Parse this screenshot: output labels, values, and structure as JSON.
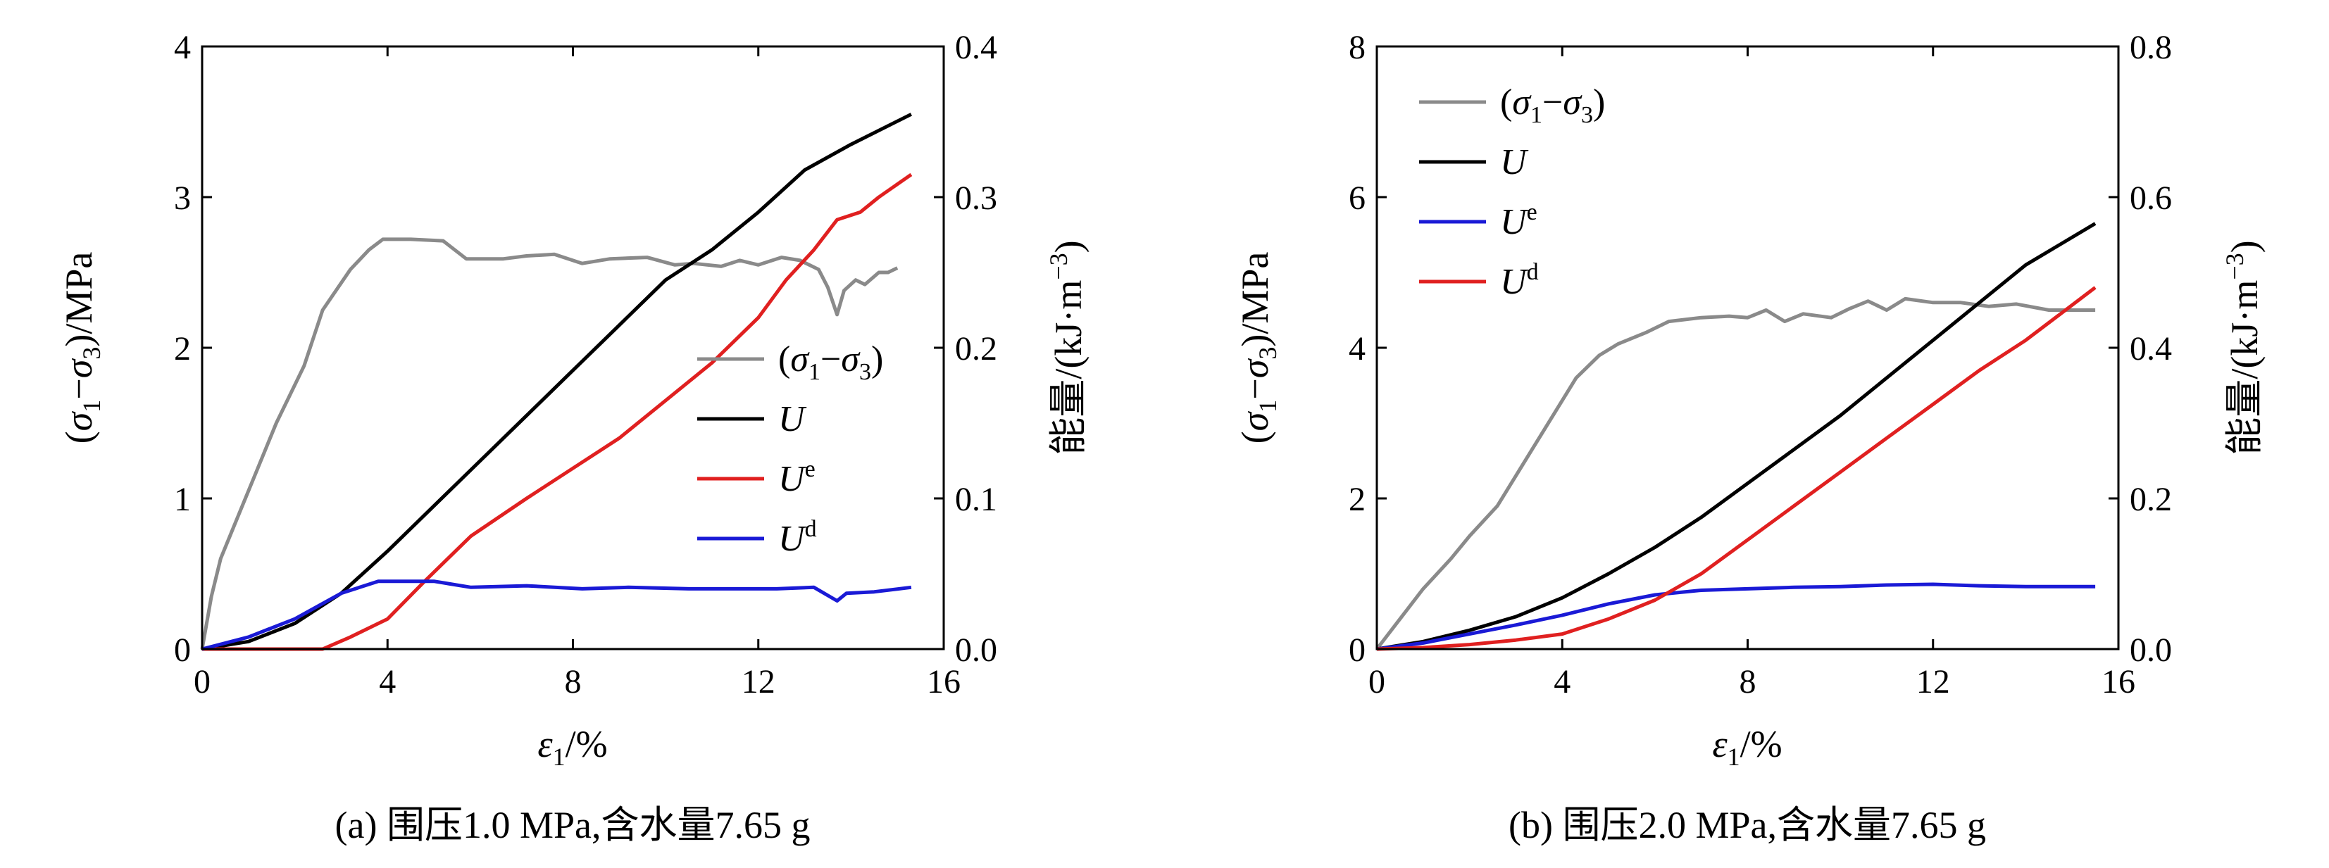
{
  "chart_data": [
    {
      "type": "line",
      "caption": "(a) 围压1.0 MPa,含水量7.65 g",
      "xlabel": {
        "main": "ε",
        "sub": "1",
        "tail": "/%"
      },
      "ylabel_left": {
        "p1": "(σ",
        "s1": "1",
        "p2": "−σ",
        "s2": "3",
        "p3": ")/MPa"
      },
      "ylabel_right": {
        "main": "能量/(kJ·m",
        "sup": "−3",
        "tail": ")"
      },
      "xlim": [
        0,
        16
      ],
      "ylim_left": [
        0,
        4
      ],
      "ylim_right": [
        0,
        0.4
      ],
      "xticks": [
        "0",
        "4",
        "8",
        "12",
        "16"
      ],
      "yticks_left": [
        "0",
        "1",
        "2",
        "3",
        "4"
      ],
      "yticks_right": [
        "0.0",
        "0.1",
        "0.2",
        "0.3",
        "0.4"
      ],
      "legend_position": "center-right",
      "series": [
        {
          "name": "(σ1−σ3)",
          "legend": {
            "p1": "(σ",
            "s1": "1",
            "p2": "−σ",
            "s2": "3",
            "p3": ")"
          },
          "axis": "left",
          "color": "#8a8a8a",
          "points": [
            [
              0,
              0
            ],
            [
              0.2,
              0.35
            ],
            [
              0.4,
              0.6
            ],
            [
              0.8,
              0.9
            ],
            [
              1.2,
              1.2
            ],
            [
              1.6,
              1.5
            ],
            [
              2.2,
              1.88
            ],
            [
              2.6,
              2.25
            ],
            [
              3.2,
              2.52
            ],
            [
              3.6,
              2.65
            ],
            [
              3.9,
              2.72
            ],
            [
              4.5,
              2.72
            ],
            [
              5.2,
              2.71
            ],
            [
              5.7,
              2.59
            ],
            [
              6.5,
              2.59
            ],
            [
              7.0,
              2.61
            ],
            [
              7.6,
              2.62
            ],
            [
              8.2,
              2.56
            ],
            [
              8.8,
              2.59
            ],
            [
              9.6,
              2.6
            ],
            [
              10.2,
              2.55
            ],
            [
              10.6,
              2.56
            ],
            [
              11.2,
              2.54
            ],
            [
              11.6,
              2.58
            ],
            [
              12.0,
              2.55
            ],
            [
              12.5,
              2.6
            ],
            [
              12.9,
              2.58
            ],
            [
              13.3,
              2.52
            ],
            [
              13.5,
              2.4
            ],
            [
              13.7,
              2.22
            ],
            [
              13.85,
              2.38
            ],
            [
              14.1,
              2.45
            ],
            [
              14.3,
              2.42
            ],
            [
              14.6,
              2.5
            ],
            [
              14.8,
              2.5
            ],
            [
              15.0,
              2.53
            ]
          ]
        },
        {
          "name": "U",
          "legend": {
            "main": "U"
          },
          "axis": "right",
          "color": "#000000",
          "points": [
            [
              0,
              0
            ],
            [
              1,
              0.005
            ],
            [
              2,
              0.017
            ],
            [
              3,
              0.037
            ],
            [
              4,
              0.065
            ],
            [
              5,
              0.095
            ],
            [
              6,
              0.125
            ],
            [
              7,
              0.155
            ],
            [
              8,
              0.185
            ],
            [
              9,
              0.215
            ],
            [
              10,
              0.245
            ],
            [
              11,
              0.265
            ],
            [
              12,
              0.29
            ],
            [
              13,
              0.318
            ],
            [
              14,
              0.335
            ],
            [
              15.3,
              0.355
            ]
          ]
        },
        {
          "name": "Ue",
          "legend": {
            "main": "U",
            "sup": "e"
          },
          "axis": "right",
          "color": "#e02020",
          "points": [
            [
              0,
              0
            ],
            [
              2.6,
              0
            ],
            [
              3.2,
              0.008
            ],
            [
              4,
              0.02
            ],
            [
              4.8,
              0.045
            ],
            [
              5.8,
              0.075
            ],
            [
              7,
              0.1
            ],
            [
              8,
              0.12
            ],
            [
              9,
              0.14
            ],
            [
              10,
              0.165
            ],
            [
              11,
              0.19
            ],
            [
              12,
              0.22
            ],
            [
              12.6,
              0.245
            ],
            [
              13.2,
              0.265
            ],
            [
              13.7,
              0.285
            ],
            [
              14.2,
              0.29
            ],
            [
              14.6,
              0.3
            ],
            [
              15.3,
              0.315
            ]
          ]
        },
        {
          "name": "Ud",
          "legend": {
            "main": "U",
            "sup": "d"
          },
          "axis": "right",
          "color": "#1a1ad6",
          "points": [
            [
              0,
              0
            ],
            [
              1,
              0.008
            ],
            [
              2,
              0.02
            ],
            [
              3,
              0.037
            ],
            [
              3.8,
              0.045
            ],
            [
              5,
              0.045
            ],
            [
              5.8,
              0.041
            ],
            [
              7,
              0.042
            ],
            [
              8.2,
              0.04
            ],
            [
              9.2,
              0.041
            ],
            [
              10.5,
              0.04
            ],
            [
              11.5,
              0.04
            ],
            [
              12.4,
              0.04
            ],
            [
              13.2,
              0.041
            ],
            [
              13.7,
              0.032
            ],
            [
              13.9,
              0.037
            ],
            [
              14.5,
              0.038
            ],
            [
              15.3,
              0.041
            ]
          ]
        }
      ]
    },
    {
      "type": "line",
      "caption": "(b) 围压2.0 MPa,含水量7.65 g",
      "xlabel": {
        "main": "ε",
        "sub": "1",
        "tail": "/%"
      },
      "ylabel_left": {
        "p1": "(σ",
        "s1": "1",
        "p2": "−σ",
        "s2": "3",
        "p3": ")/MPa"
      },
      "ylabel_right": {
        "main": "能量/(kJ·m",
        "sup": "−3",
        "tail": ")"
      },
      "xlim": [
        0,
        16
      ],
      "ylim_left": [
        0,
        8
      ],
      "ylim_right": [
        0,
        0.8
      ],
      "xticks": [
        "0",
        "4",
        "8",
        "12",
        "16"
      ],
      "yticks_left": [
        "0",
        "2",
        "4",
        "6",
        "8"
      ],
      "yticks_right": [
        "0.0",
        "0.2",
        "0.4",
        "0.6",
        "0.8"
      ],
      "legend_position": "top-left",
      "series": [
        {
          "name": "(σ1−σ3)",
          "legend": {
            "p1": "(σ",
            "s1": "1",
            "p2": "−σ",
            "s2": "3",
            "p3": ")"
          },
          "axis": "left",
          "color": "#8a8a8a",
          "points": [
            [
              0,
              0
            ],
            [
              0.5,
              0.4
            ],
            [
              1,
              0.8
            ],
            [
              1.6,
              1.2
            ],
            [
              2,
              1.5
            ],
            [
              2.6,
              1.9
            ],
            [
              3,
              2.3
            ],
            [
              3.5,
              2.8
            ],
            [
              3.9,
              3.2
            ],
            [
              4.3,
              3.6
            ],
            [
              4.8,
              3.9
            ],
            [
              5.2,
              4.05
            ],
            [
              5.8,
              4.2
            ],
            [
              6.3,
              4.35
            ],
            [
              7,
              4.4
            ],
            [
              7.6,
              4.42
            ],
            [
              8,
              4.4
            ],
            [
              8.4,
              4.5
            ],
            [
              8.8,
              4.35
            ],
            [
              9.2,
              4.45
            ],
            [
              9.8,
              4.4
            ],
            [
              10.2,
              4.52
            ],
            [
              10.6,
              4.62
            ],
            [
              11.0,
              4.5
            ],
            [
              11.4,
              4.65
            ],
            [
              12,
              4.6
            ],
            [
              12.6,
              4.6
            ],
            [
              13.2,
              4.55
            ],
            [
              13.8,
              4.58
            ],
            [
              14.5,
              4.5
            ],
            [
              15.5,
              4.5
            ]
          ]
        },
        {
          "name": "U",
          "legend": {
            "main": "U"
          },
          "axis": "right",
          "color": "#000000",
          "points": [
            [
              0,
              0
            ],
            [
              1,
              0.01
            ],
            [
              2,
              0.025
            ],
            [
              3,
              0.043
            ],
            [
              4,
              0.068
            ],
            [
              5,
              0.1
            ],
            [
              6,
              0.135
            ],
            [
              7,
              0.175
            ],
            [
              8,
              0.22
            ],
            [
              9,
              0.265
            ],
            [
              10,
              0.31
            ],
            [
              11,
              0.36
            ],
            [
              12,
              0.41
            ],
            [
              13,
              0.46
            ],
            [
              14,
              0.51
            ],
            [
              15.5,
              0.565
            ]
          ]
        },
        {
          "name": "Ue",
          "legend": {
            "main": "U",
            "sup": "e"
          },
          "axis": "right",
          "color": "#1a1ad6",
          "points": [
            [
              0,
              0
            ],
            [
              1,
              0.008
            ],
            [
              2,
              0.02
            ],
            [
              3,
              0.032
            ],
            [
              4,
              0.045
            ],
            [
              5,
              0.06
            ],
            [
              6,
              0.072
            ],
            [
              7,
              0.078
            ],
            [
              8,
              0.08
            ],
            [
              9,
              0.082
            ],
            [
              10,
              0.083
            ],
            [
              11,
              0.085
            ],
            [
              12,
              0.086
            ],
            [
              13,
              0.084
            ],
            [
              14,
              0.083
            ],
            [
              15.5,
              0.083
            ]
          ]
        },
        {
          "name": "Ud",
          "legend": {
            "main": "U",
            "sup": "d"
          },
          "axis": "right",
          "color": "#e02020",
          "points": [
            [
              0,
              0
            ],
            [
              1,
              0.002
            ],
            [
              2,
              0.006
            ],
            [
              3,
              0.012
            ],
            [
              4,
              0.02
            ],
            [
              5,
              0.04
            ],
            [
              6,
              0.065
            ],
            [
              7,
              0.1
            ],
            [
              8,
              0.145
            ],
            [
              9,
              0.19
            ],
            [
              10,
              0.235
            ],
            [
              11,
              0.28
            ],
            [
              12,
              0.325
            ],
            [
              13,
              0.37
            ],
            [
              14,
              0.41
            ],
            [
              15.5,
              0.48
            ]
          ]
        }
      ]
    }
  ]
}
